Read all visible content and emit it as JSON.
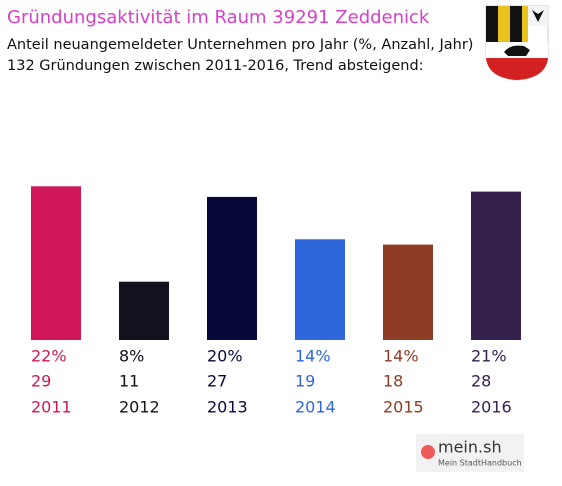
{
  "chart_data": {
    "type": "bar",
    "title": "Gründungsaktivität im Raum 39291 Zeddenick",
    "subtitle": [
      "Anteil neuangemeldeter Unternehmen pro Jahr (%, Anzahl, Jahr)",
      "132 Gründungen zwischen 2011-2016, Trend absteigend:"
    ],
    "categories": [
      "2011",
      "2012",
      "2013",
      "2014",
      "2015",
      "2016"
    ],
    "values": [
      29,
      11,
      27,
      19,
      18,
      28
    ],
    "percent_values": [
      22,
      8,
      20,
      14,
      14,
      21
    ],
    "percent_labels": [
      "22%",
      "8%",
      "20%",
      "14%",
      "14%",
      "21%"
    ],
    "colors": [
      "#d0175a",
      "#12121e",
      "#08083a",
      "#2e66dc",
      "#8e3c26",
      "#35204e"
    ]
  },
  "logo": {
    "text": "mein.sh",
    "subtitle": "Mein StadtHandbuch"
  }
}
